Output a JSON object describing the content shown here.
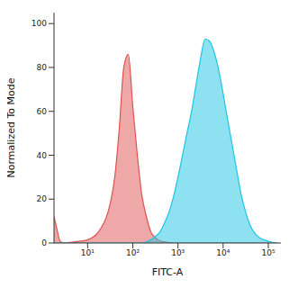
{
  "chart_data": {
    "type": "area",
    "x_label": "FITC-A",
    "y_label": "Normalized To Mode",
    "log": "x",
    "xlim": [
      1.8,
      190000
    ],
    "xticks": [
      {
        "value": 10,
        "label": "10¹"
      },
      {
        "value": 100,
        "label": "10²"
      },
      {
        "value": 1000,
        "label": "10³"
      },
      {
        "value": 10000,
        "label": "10⁴"
      },
      {
        "value": 100000,
        "label": "10⁵"
      }
    ],
    "ylim": [
      0,
      105
    ],
    "yticks": [
      0,
      20,
      40,
      60,
      80,
      100
    ],
    "x": [
      1.8,
      2,
      2.51,
      3.16,
      3.98,
      5.01,
      6.31,
      7.94,
      10,
      12.6,
      15.8,
      20,
      25.1,
      31.6,
      39.8,
      50.1,
      63.1,
      79.4,
      100,
      126,
      158,
      200,
      251,
      316,
      398,
      501,
      631,
      794,
      1000,
      1260,
      1580,
      2000,
      2510,
      3160,
      3980,
      5010,
      6310,
      7940,
      10000,
      12600,
      15800,
      20000,
      25100,
      31600,
      39800,
      50100,
      63100,
      79400,
      100000,
      126000,
      158000
    ],
    "series": [
      {
        "color": "#e05252",
        "values": [
          12,
          8,
          0.5,
          0,
          0.3,
          0.5,
          0.8,
          1,
          1.5,
          2.5,
          4,
          7,
          11,
          18,
          30,
          52,
          80,
          86,
          62,
          40,
          22,
          12,
          5,
          2.5,
          1,
          0.5,
          0.2,
          0,
          0,
          0,
          0,
          0,
          0,
          0,
          0,
          0,
          0,
          0,
          0,
          0,
          0,
          0,
          0,
          0,
          0,
          0,
          0,
          0,
          0,
          0,
          0
        ]
      },
      {
        "color": "#1ec4e2",
        "values": [
          0,
          0,
          0,
          0,
          0,
          0,
          0,
          0,
          0,
          0,
          0,
          0,
          0,
          0,
          0,
          0,
          0,
          0,
          0,
          0,
          0,
          0.5,
          1.5,
          3,
          5,
          9,
          14,
          21,
          30,
          40,
          50,
          60,
          72,
          84,
          93,
          92,
          87,
          79,
          68,
          56,
          45,
          33,
          22,
          14,
          8,
          4.5,
          2.5,
          1.5,
          0.8,
          0.3,
          0
        ]
      }
    ]
  }
}
